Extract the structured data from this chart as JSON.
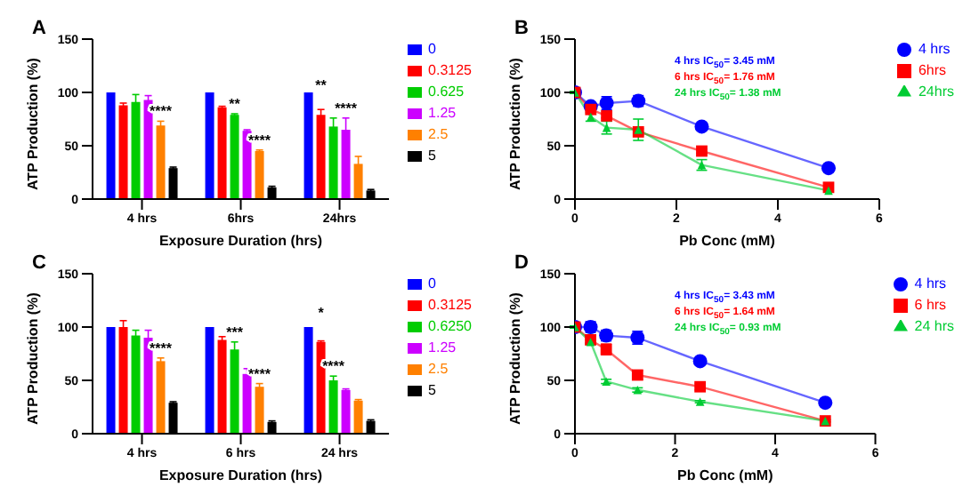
{
  "chart_data": [
    {
      "type": "bar",
      "title": "A",
      "xlabel": "Exposure Duration (hrs)",
      "ylabel": "ATP Production (%)",
      "categories": [
        "4 hrs",
        "6hrs",
        "24hrs"
      ],
      "ylim": [
        0,
        150
      ],
      "yticks": [
        0,
        50,
        100,
        150
      ],
      "legend": "right",
      "series": [
        {
          "name": "0",
          "color": "#0000ff",
          "values": [
            100,
            100,
            100
          ]
        },
        {
          "name": "0.3125",
          "color": "#ff0000",
          "values": [
            88,
            86,
            79
          ],
          "errors": [
            2,
            1,
            5
          ]
        },
        {
          "name": "0.625",
          "color": "#00cc00",
          "values": [
            91,
            79,
            68
          ],
          "errors": [
            7,
            1,
            8
          ]
        },
        {
          "name": "1.25",
          "color": "#cc00ff",
          "values": [
            93,
            64,
            65
          ],
          "errors": [
            4,
            1,
            11
          ]
        },
        {
          "name": "2.5",
          "color": "#ff8000",
          "values": [
            69,
            45,
            33
          ],
          "errors": [
            4,
            1,
            7
          ]
        },
        {
          "name": "5",
          "color": "#000000",
          "values": [
            29,
            11,
            8
          ],
          "errors": [
            1,
            1,
            1
          ]
        }
      ],
      "annotations": [
        {
          "text": "****",
          "x": "4 hrs",
          "y": 69
        },
        {
          "text": "**",
          "x": "6hrs",
          "y": 79
        },
        {
          "text": "****",
          "x": "6hrs",
          "y": 45
        },
        "**",
        {
          "text": "****",
          "x": "24hrs",
          "y": 65
        }
      ]
    },
    {
      "type": "line",
      "title": "B",
      "xlabel": "Pb Conc (mM)",
      "ylabel": "ATP Production (%)",
      "x": [
        0,
        0.3125,
        0.625,
        1.25,
        2.5,
        5
      ],
      "xlim": [
        0,
        6
      ],
      "xticks": [
        0,
        2,
        4,
        6
      ],
      "ylim": [
        0,
        150
      ],
      "yticks": [
        0,
        50,
        100,
        150
      ],
      "legend": "right",
      "series": [
        {
          "name": "4 hrs",
          "color": "#0000ff",
          "marker": "circle",
          "values": [
            100,
            87,
            90,
            92,
            68,
            29
          ],
          "errors": [
            1,
            3,
            6,
            5,
            3,
            1
          ]
        },
        {
          "name": "6hrs",
          "color": "#ff0000",
          "marker": "square",
          "values": [
            100,
            84,
            78,
            63,
            45,
            11
          ],
          "errors": [
            1,
            2,
            2,
            3,
            2,
            1
          ]
        },
        {
          "name": "24hrs",
          "color": "#00cc33",
          "marker": "triangle",
          "values": [
            100,
            77,
            67,
            65,
            32,
            8
          ],
          "errors": [
            1,
            4,
            6,
            10,
            5,
            1
          ]
        }
      ],
      "annotations": [
        "4 hrs IC$_{50}$= 3.45  mM",
        "6 hrs IC$_{50}$= 1.76  mM",
        "24 hrs IC$_{50}$= 1.38 mM"
      ]
    },
    {
      "type": "bar",
      "title": "C",
      "xlabel": "Exposure Duration (hrs)",
      "ylabel": "ATP Production (%)",
      "categories": [
        "4 hrs",
        "6 hrs",
        "24 hrs"
      ],
      "ylim": [
        0,
        150
      ],
      "yticks": [
        0,
        50,
        100,
        150
      ],
      "legend": "right",
      "series": [
        {
          "name": "0",
          "color": "#0000ff",
          "values": [
            100,
            100,
            100
          ]
        },
        {
          "name": "0.3125",
          "color": "#ff0000",
          "values": [
            100,
            88,
            86
          ],
          "errors": [
            6,
            3,
            1
          ]
        },
        {
          "name": "0.6250",
          "color": "#00cc00",
          "values": [
            92,
            79,
            50
          ],
          "errors": [
            5,
            7,
            4
          ]
        },
        {
          "name": "1.25",
          "color": "#cc00ff",
          "values": [
            90,
            56,
            41
          ],
          "errors": [
            7,
            5,
            1
          ]
        },
        {
          "name": "2.5",
          "color": "#ff8000",
          "values": [
            68,
            44,
            31
          ],
          "errors": [
            3,
            3,
            1
          ]
        },
        {
          "name": "5",
          "color": "#000000",
          "values": [
            29,
            11,
            12
          ],
          "errors": [
            1,
            1,
            1
          ]
        }
      ],
      "annotations": [
        {
          "text": "****",
          "x": "4 hrs",
          "y": 68
        },
        {
          "text": "***",
          "x": "6 hrs",
          "y": 79
        },
        {
          "text": "****",
          "x": "6 hrs",
          "y": 44
        },
        "*",
        {
          "text": "****",
          "x": "24 hrs",
          "y": 50
        }
      ]
    },
    {
      "type": "line",
      "title": "D",
      "xlabel": "Pb Conc (mM)",
      "ylabel": "ATP Production (%)",
      "x": [
        0,
        0.3125,
        0.625,
        1.25,
        2.5,
        5
      ],
      "xlim": [
        0,
        6
      ],
      "xticks": [
        0,
        2,
        4,
        6
      ],
      "ylim": [
        0,
        150
      ],
      "yticks": [
        0,
        50,
        100,
        150
      ],
      "legend": "right",
      "series": [
        {
          "name": "4 hrs",
          "color": "#0000ff",
          "marker": "circle",
          "values": [
            100,
            100,
            92,
            90,
            68,
            29
          ],
          "errors": [
            1,
            5,
            5,
            6,
            3,
            1
          ]
        },
        {
          "name": "6 hrs",
          "color": "#ff0000",
          "marker": "square",
          "values": [
            100,
            88,
            79,
            55,
            44,
            12
          ],
          "errors": [
            1,
            3,
            5,
            4,
            3,
            1
          ]
        },
        {
          "name": "24 hrs",
          "color": "#00cc33",
          "marker": "triangle",
          "values": [
            100,
            86,
            49,
            41,
            30,
            12
          ],
          "errors": [
            1,
            2,
            2,
            2,
            1,
            1
          ]
        }
      ],
      "annotations": [
        "4 hrs IC$_{50}$= 3.43 mM",
        "6 hrs IC$_{50}$= 1.64 mM",
        "24 hrs IC$_{50}$= 0.93 mM"
      ]
    }
  ]
}
